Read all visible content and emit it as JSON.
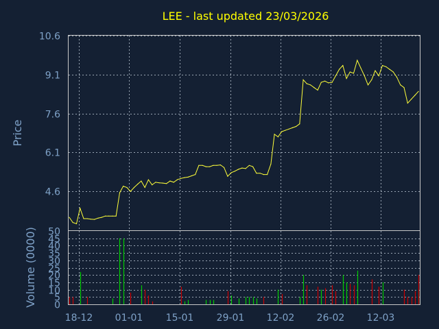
{
  "chart_data": [
    {
      "type": "line",
      "title": "LEE - last updated 23/03/2026",
      "xlabel": "",
      "ylabel": "Price",
      "ylim": [
        3.1,
        10.6
      ],
      "yticks": [
        "4.6",
        "6.1",
        "7.6",
        "9.1",
        "10.6"
      ],
      "xticks": [
        "18-12",
        "01-01",
        "15-01",
        "29-01",
        "12-02",
        "26-02",
        "12-03"
      ],
      "grid": true,
      "color": "#ffff3a",
      "series": [
        {
          "values": [
            3.6,
            3.4,
            3.35,
            3.95,
            3.55,
            3.55,
            3.53,
            3.52,
            3.57,
            3.6,
            3.65,
            3.65,
            3.65,
            3.65,
            4.55,
            4.8,
            4.75,
            4.6,
            4.75,
            4.88,
            5.0,
            4.75,
            5.05,
            4.85,
            4.95,
            4.93,
            4.92,
            4.9,
            5.0,
            4.95,
            5.05,
            5.1,
            5.13,
            5.15,
            5.2,
            5.25,
            5.6,
            5.6,
            5.55,
            5.55,
            5.6,
            5.6,
            5.62,
            5.52,
            5.18,
            5.32,
            5.38,
            5.45,
            5.5,
            5.48,
            5.6,
            5.55,
            5.3,
            5.3,
            5.25,
            5.25,
            5.65,
            6.8,
            6.7,
            6.9,
            6.95,
            7.0,
            7.05,
            7.1,
            7.2,
            8.9,
            8.75,
            8.7,
            8.6,
            8.5,
            8.8,
            8.85,
            8.78,
            8.8,
            9.05,
            9.3,
            9.45,
            8.95,
            9.2,
            9.15,
            9.65,
            9.35,
            9.05,
            8.7,
            8.9,
            9.25,
            9.05,
            9.45,
            9.4,
            9.3,
            9.2,
            9.0,
            8.7,
            8.6,
            8.0,
            8.15,
            8.3,
            8.45
          ]
        }
      ]
    },
    {
      "type": "bar",
      "title": "",
      "xlabel": "",
      "ylabel": "Volume (0000)",
      "ylim": [
        0,
        50
      ],
      "yticks": [
        "0",
        "5",
        "10",
        "15",
        "20",
        "25",
        "30",
        "35",
        "40",
        "45",
        "50"
      ],
      "xticks": [
        "18-12",
        "01-01",
        "15-01",
        "29-01",
        "12-02",
        "26-02",
        "12-03"
      ],
      "grid": true,
      "up_color": "#00cc00",
      "down_color": "#cc0000",
      "series": [
        {
          "name": "up",
          "values": [
            0,
            0,
            0,
            22,
            0,
            0,
            0,
            0,
            0,
            0,
            0,
            0,
            4,
            0,
            45,
            45,
            0,
            0,
            0,
            0,
            13,
            0,
            0,
            0,
            0,
            0,
            0,
            0,
            0,
            0,
            0,
            0,
            2,
            3,
            0,
            0,
            0,
            0,
            3,
            3,
            3,
            0,
            0,
            0,
            0,
            6,
            0,
            4,
            0,
            5,
            5,
            5,
            4,
            0,
            0,
            0,
            0,
            0,
            10,
            0,
            0,
            0,
            0,
            0,
            5,
            20,
            0,
            0,
            0,
            0,
            10,
            0,
            0,
            0,
            0,
            0,
            20,
            15,
            0,
            0,
            23,
            0,
            0,
            0,
            0,
            0,
            0,
            15,
            0,
            0,
            0,
            0,
            0,
            0,
            0,
            0,
            0,
            10
          ]
        },
        {
          "name": "down",
          "values": [
            5,
            5,
            0,
            0,
            0,
            5,
            0,
            0,
            0,
            0,
            0,
            0,
            0,
            0,
            0,
            0,
            0,
            8,
            0,
            0,
            0,
            10,
            6,
            2,
            0,
            0,
            0,
            0,
            0,
            0,
            0,
            12,
            0,
            0,
            0,
            0,
            0,
            0,
            0,
            0,
            0,
            0,
            0,
            0,
            9,
            0,
            0,
            0,
            0,
            0,
            0,
            0,
            0,
            0,
            5,
            0,
            0,
            0,
            0,
            7,
            0,
            0,
            0,
            0,
            0,
            0,
            13,
            0,
            0,
            12,
            0,
            11,
            0,
            13,
            9,
            0,
            0,
            0,
            14,
            13,
            0,
            0,
            0,
            0,
            17,
            0,
            12,
            0,
            0,
            0,
            0,
            0,
            0,
            10,
            5,
            5,
            9,
            20
          ]
        }
      ]
    }
  ]
}
